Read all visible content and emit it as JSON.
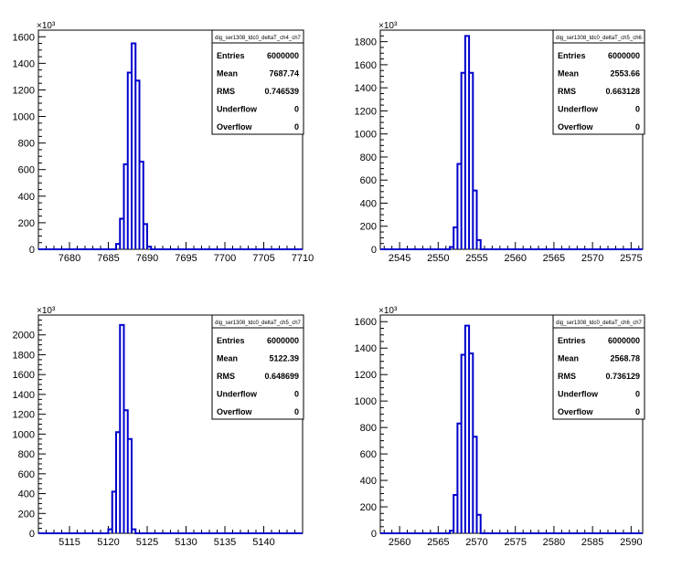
{
  "colors": {
    "histogram": "#0000cc",
    "frame": "#000000",
    "background": "#ffffff"
  },
  "chart_data": [
    {
      "type": "histogram",
      "exponent_label": "×10³",
      "title": "dig_ser1308_tdc0_deltaT_ch4_ch7",
      "xlim": [
        7676,
        7710
      ],
      "ylim": [
        0,
        1650
      ],
      "xticks": [
        7680,
        7685,
        7690,
        7695,
        7700,
        7705,
        7710
      ],
      "yticks": [
        0,
        200,
        400,
        600,
        800,
        1000,
        1200,
        1400,
        1600
      ],
      "bin_width": 0.5,
      "bins": [
        {
          "x": 7686.0,
          "y": 40
        },
        {
          "x": 7686.5,
          "y": 230
        },
        {
          "x": 7687.0,
          "y": 640
        },
        {
          "x": 7687.5,
          "y": 1330
        },
        {
          "x": 7688.0,
          "y": 1550
        },
        {
          "x": 7688.5,
          "y": 1270
        },
        {
          "x": 7689.0,
          "y": 660
        },
        {
          "x": 7689.5,
          "y": 190
        },
        {
          "x": 7690.0,
          "y": 20
        }
      ],
      "stats": [
        {
          "label": "Entries",
          "value": "6000000"
        },
        {
          "label": "Mean",
          "value": "7687.74"
        },
        {
          "label": "RMS",
          "value": "0.746539"
        },
        {
          "label": "Underflow",
          "value": "0"
        },
        {
          "label": "Overflow",
          "value": "0"
        }
      ]
    },
    {
      "type": "histogram",
      "exponent_label": "×10³",
      "title": "dig_ser1308_tdc0_deltaT_ch5_ch6",
      "xlim": [
        2542.5,
        2576.5
      ],
      "ylim": [
        0,
        1900
      ],
      "xticks": [
        2545,
        2550,
        2555,
        2560,
        2565,
        2570,
        2575
      ],
      "yticks": [
        0,
        200,
        400,
        600,
        800,
        1000,
        1200,
        1400,
        1600,
        1800
      ],
      "bin_width": 0.5,
      "bins": [
        {
          "x": 2551.5,
          "y": 20
        },
        {
          "x": 2552.0,
          "y": 190
        },
        {
          "x": 2552.5,
          "y": 740
        },
        {
          "x": 2553.0,
          "y": 1530
        },
        {
          "x": 2553.5,
          "y": 1850
        },
        {
          "x": 2554.0,
          "y": 1530
        },
        {
          "x": 2554.5,
          "y": 510
        },
        {
          "x": 2555.0,
          "y": 80
        }
      ],
      "stats": [
        {
          "label": "Entries",
          "value": "6000000"
        },
        {
          "label": "Mean",
          "value": "2553.66"
        },
        {
          "label": "RMS",
          "value": "0.663128"
        },
        {
          "label": "Underflow",
          "value": "0"
        },
        {
          "label": "Overflow",
          "value": "0"
        }
      ]
    },
    {
      "type": "histogram",
      "exponent_label": "×10³",
      "title": "dig_ser1308_tdc0_deltaT_ch5_ch7",
      "xlim": [
        5111,
        5145
      ],
      "ylim": [
        0,
        2200
      ],
      "xticks": [
        5115,
        5120,
        5125,
        5130,
        5135,
        5140
      ],
      "yticks": [
        0,
        200,
        400,
        600,
        800,
        1000,
        1200,
        1400,
        1600,
        1800,
        2000
      ],
      "bin_width": 0.5,
      "bins": [
        {
          "x": 5120.0,
          "y": 40
        },
        {
          "x": 5120.5,
          "y": 420
        },
        {
          "x": 5121.0,
          "y": 1020
        },
        {
          "x": 5121.5,
          "y": 2100
        },
        {
          "x": 5122.0,
          "y": 1240
        },
        {
          "x": 5122.5,
          "y": 950
        },
        {
          "x": 5123.0,
          "y": 40
        }
      ],
      "stats": [
        {
          "label": "Entries",
          "value": "6000000"
        },
        {
          "label": "Mean",
          "value": "5122.39"
        },
        {
          "label": "RMS",
          "value": "0.648699"
        },
        {
          "label": "Underflow",
          "value": "0"
        },
        {
          "label": "Overflow",
          "value": "0"
        }
      ]
    },
    {
      "type": "histogram",
      "exponent_label": "×10³",
      "title": "dig_ser1308_tdc0_deltaT_ch6_ch7",
      "xlim": [
        2557.5,
        2591.5
      ],
      "ylim": [
        0,
        1650
      ],
      "xticks": [
        2560,
        2565,
        2570,
        2575,
        2580,
        2585,
        2590
      ],
      "yticks": [
        0,
        200,
        400,
        600,
        800,
        1000,
        1200,
        1400,
        1600
      ],
      "bin_width": 0.5,
      "bins": [
        {
          "x": 2566.5,
          "y": 20
        },
        {
          "x": 2567.0,
          "y": 290
        },
        {
          "x": 2567.5,
          "y": 830
        },
        {
          "x": 2568.0,
          "y": 1350
        },
        {
          "x": 2568.5,
          "y": 1570
        },
        {
          "x": 2569.0,
          "y": 1360
        },
        {
          "x": 2569.5,
          "y": 730
        },
        {
          "x": 2570.0,
          "y": 140
        }
      ],
      "stats": [
        {
          "label": "Entries",
          "value": "6000000"
        },
        {
          "label": "Mean",
          "value": "2568.78"
        },
        {
          "label": "RMS",
          "value": "0.736129"
        },
        {
          "label": "Underflow",
          "value": "0"
        },
        {
          "label": "Overflow",
          "value": "0"
        }
      ]
    }
  ]
}
